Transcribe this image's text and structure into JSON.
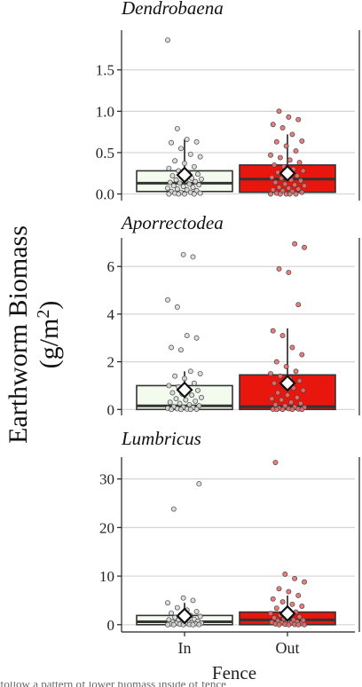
{
  "chart_data": {
    "type": "boxplot",
    "ylabel_line1": "Earthworm Biomass",
    "ylabel_line2_main": "(g/m",
    "ylabel_line2_sup": "2",
    "ylabel_line2_end": ")",
    "xlabel": "Fence",
    "categories": [
      "In",
      "Out"
    ],
    "colors": {
      "In": "#f2fbee",
      "Out": "#e8160c",
      "point_in": "#d9d9d9",
      "point_out": "#e87070",
      "grid": "#d4d4d4"
    },
    "panels": [
      {
        "title": "Dendrobaena",
        "ylim": [
          -0.08,
          1.98
        ],
        "yticks": [
          0.0,
          0.5,
          1.0,
          1.5
        ],
        "tick_labels": [
          "0.0",
          "0.5",
          "1.0",
          "1.5"
        ],
        "boxes": [
          {
            "category": "In",
            "q1": 0.03,
            "median": 0.13,
            "q3": 0.28,
            "whisker_low": 0.0,
            "whisker_high": 0.66,
            "mean": 0.23,
            "points": [
              1.86,
              0.79,
              0.66,
              0.63,
              0.62,
              0.55,
              0.48,
              0.45,
              0.4,
              0.37,
              0.33,
              0.31,
              0.28,
              0.26,
              0.24,
              0.22,
              0.2,
              0.19,
              0.18,
              0.17,
              0.16,
              0.15,
              0.14,
              0.13,
              0.12,
              0.11,
              0.1,
              0.09,
              0.08,
              0.07,
              0.06,
              0.05,
              0.04,
              0.03,
              0.02,
              0.02,
              0.01,
              0.01,
              0.0,
              0.0,
              0.0,
              0.0
            ]
          },
          {
            "category": "Out",
            "q1": 0.02,
            "median": 0.18,
            "q3": 0.35,
            "whisker_low": 0.0,
            "whisker_high": 0.72,
            "mean": 0.25,
            "points": [
              1.0,
              0.93,
              0.9,
              0.84,
              0.8,
              0.72,
              0.64,
              0.63,
              0.58,
              0.52,
              0.47,
              0.44,
              0.41,
              0.38,
              0.35,
              0.33,
              0.3,
              0.28,
              0.26,
              0.24,
              0.22,
              0.2,
              0.19,
              0.17,
              0.16,
              0.14,
              0.12,
              0.11,
              0.1,
              0.08,
              0.07,
              0.06,
              0.05,
              0.04,
              0.03,
              0.02,
              0.01,
              0.0,
              0.0,
              0.0,
              0.0,
              0.0
            ]
          }
        ]
      },
      {
        "title": "Aporrectodea",
        "ylim": [
          -0.25,
          7.2
        ],
        "yticks": [
          0,
          2,
          4,
          6
        ],
        "tick_labels": [
          "0",
          "2",
          "4",
          "6"
        ],
        "boxes": [
          {
            "category": "In",
            "q1": 0.0,
            "median": 0.15,
            "q3": 1.0,
            "whisker_low": 0.0,
            "whisker_high": 1.6,
            "mean": 0.82,
            "points": [
              6.5,
              6.4,
              4.6,
              4.3,
              3.1,
              3.0,
              2.6,
              2.5,
              1.6,
              1.5,
              1.4,
              1.3,
              1.1,
              1.0,
              0.95,
              0.85,
              0.8,
              0.7,
              0.65,
              0.6,
              0.5,
              0.45,
              0.4,
              0.35,
              0.3,
              0.25,
              0.2,
              0.15,
              0.12,
              0.1,
              0.08,
              0.05,
              0.03,
              0.02,
              0.01,
              0.0,
              0.0,
              0.0
            ]
          },
          {
            "category": "Out",
            "q1": 0.0,
            "median": 0.12,
            "q3": 1.45,
            "whisker_low": 0.0,
            "whisker_high": 3.4,
            "mean": 1.1,
            "points": [
              6.95,
              6.8,
              5.9,
              5.75,
              4.4,
              3.3,
              3.1,
              2.6,
              2.3,
              2.0,
              1.8,
              1.6,
              1.5,
              1.4,
              1.3,
              1.2,
              1.1,
              1.0,
              0.9,
              0.8,
              0.7,
              0.6,
              0.5,
              0.45,
              0.4,
              0.3,
              0.25,
              0.2,
              0.15,
              0.1,
              0.08,
              0.05,
              0.03,
              0.02,
              0.01,
              0.0,
              0.0,
              0.0,
              0.0
            ]
          }
        ]
      },
      {
        "title": "Lumbricus",
        "ylim": [
          -1.5,
          34.5
        ],
        "yticks": [
          0,
          10,
          20,
          30
        ],
        "tick_labels": [
          "0",
          "10",
          "20",
          "30"
        ],
        "boxes": [
          {
            "category": "In",
            "q1": 0.0,
            "median": 0.6,
            "q3": 1.9,
            "whisker_low": 0.0,
            "whisker_high": 4.5,
            "mean": 1.8,
            "points": [
              29.0,
              23.8,
              5.5,
              5.0,
              4.5,
              3.5,
              3.0,
              2.7,
              2.4,
              2.1,
              1.9,
              1.7,
              1.5,
              1.3,
              1.1,
              1.0,
              0.9,
              0.8,
              0.7,
              0.6,
              0.5,
              0.4,
              0.35,
              0.3,
              0.25,
              0.2,
              0.15,
              0.1,
              0.05,
              0.03,
              0.0,
              0.0,
              0.0,
              0.0
            ]
          },
          {
            "category": "Out",
            "q1": 0.0,
            "median": 1.0,
            "q3": 2.6,
            "whisker_low": 0.0,
            "whisker_high": 6.0,
            "mean": 2.3,
            "points": [
              33.4,
              10.4,
              9.5,
              8.8,
              7.4,
              6.8,
              6.0,
              5.3,
              4.7,
              4.2,
              3.8,
              3.4,
              3.0,
              2.6,
              2.3,
              2.0,
              1.8,
              1.6,
              1.4,
              1.2,
              1.0,
              0.9,
              0.8,
              0.7,
              0.6,
              0.5,
              0.4,
              0.3,
              0.2,
              0.15,
              0.1,
              0.05,
              0.0,
              0.0,
              0.0,
              0.0
            ]
          }
        ]
      }
    ]
  },
  "footer_text": "follow a pattern of lower biomass inside of fence"
}
